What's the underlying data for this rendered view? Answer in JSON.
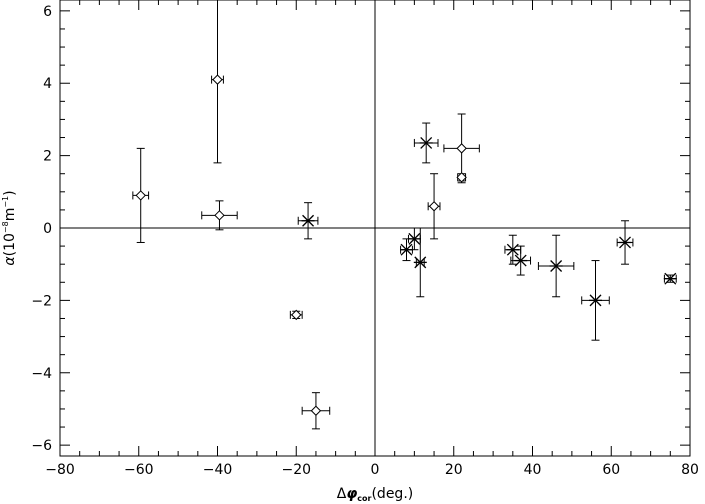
{
  "chart_data": {
    "type": "scatter",
    "x_axis": {
      "min": -80,
      "max": 80,
      "ticks": [
        -80,
        -60,
        -40,
        -20,
        0,
        20,
        40,
        60,
        80
      ],
      "tick_labels": [
        "−80",
        "−60",
        "−40",
        "−20",
        "0",
        "20",
        "40",
        "60",
        "80"
      ],
      "label_prefix": "Δ",
      "label_symbol": "φ",
      "label_subscript": "cor",
      "label_suffix": "(deg.)"
    },
    "y_axis": {
      "min": -6.3,
      "max": 6.3,
      "ticks": [
        -6,
        -4,
        -2,
        0,
        2,
        4,
        6
      ],
      "tick_labels": [
        "−6",
        "−4",
        "−2",
        "0",
        "2",
        "4",
        "6"
      ],
      "label_symbol": "α",
      "label_unit_open": "(10",
      "label_exponent1": "−8",
      "label_unit_mid": "m",
      "label_exponent2": "−1",
      "label_unit_close": ")"
    },
    "reference_lines": {
      "x": 0,
      "y": 0
    },
    "series": [
      {
        "marker": "diamond",
        "points": [
          {
            "x": -59.5,
            "y": 0.9,
            "xerr": 2.0,
            "yerr": 1.3
          },
          {
            "x": -40.0,
            "y": 4.1,
            "xerr": 1.5,
            "yerr": 2.3
          },
          {
            "x": -39.5,
            "y": 0.35,
            "xerr": 4.5,
            "yerr": 0.4
          },
          {
            "x": -20.0,
            "y": -2.4,
            "xerr": 1.5,
            "yerr": 0.1
          },
          {
            "x": -15.0,
            "y": -5.05,
            "xerr": 3.5,
            "yerr": 0.5
          },
          {
            "x": 15.0,
            "y": 0.6,
            "xerr": 1.5,
            "yerr": 0.9
          },
          {
            "x": 22.0,
            "y": 2.2,
            "xerr": 4.5,
            "yerr": 0.95
          },
          {
            "x": 22.0,
            "y": 1.4,
            "xerr": 1.0,
            "yerr": 0.1
          }
        ]
      },
      {
        "marker": "asterisk",
        "points": [
          {
            "x": -17.0,
            "y": 0.2,
            "xerr": 2.5,
            "yerr": 0.5
          },
          {
            "x": 8.0,
            "y": -0.6,
            "xerr": 1.5,
            "yerr": 0.3
          },
          {
            "x": 10.0,
            "y": -0.3,
            "xerr": 1.5,
            "yerr": 0.3
          },
          {
            "x": 11.5,
            "y": -0.95,
            "xerr": 1.0,
            "yerr": 0.95
          },
          {
            "x": 13.0,
            "y": 2.35,
            "xerr": 3.0,
            "yerr": 0.55
          },
          {
            "x": 35.0,
            "y": -0.6,
            "xerr": 2.0,
            "yerr": 0.4
          },
          {
            "x": 37.0,
            "y": -0.9,
            "xerr": 2.5,
            "yerr": 0.4
          },
          {
            "x": 46.0,
            "y": -1.05,
            "xerr": 4.5,
            "yerr": 0.85
          },
          {
            "x": 56.0,
            "y": -2.0,
            "xerr": 3.5,
            "yerr": 1.1
          },
          {
            "x": 63.5,
            "y": -0.4,
            "xerr": 2.0,
            "yerr": 0.6
          },
          {
            "x": 75.0,
            "y": -1.4,
            "xerr": 1.5,
            "yerr": 0.1
          }
        ]
      }
    ]
  }
}
